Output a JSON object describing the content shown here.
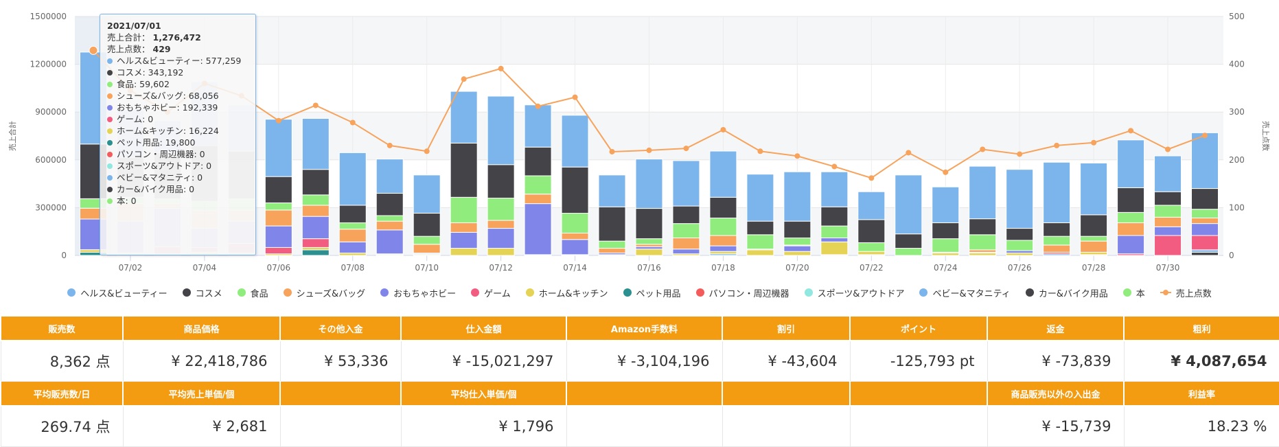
{
  "chart_data": {
    "type": "bar",
    "stacked": true,
    "categories": [
      "07/01",
      "07/02",
      "07/03",
      "07/04",
      "07/05",
      "07/06",
      "07/07",
      "07/08",
      "07/09",
      "07/10",
      "07/11",
      "07/12",
      "07/13",
      "07/14",
      "07/15",
      "07/16",
      "07/17",
      "07/18",
      "07/19",
      "07/20",
      "07/21",
      "07/22",
      "07/23",
      "07/24",
      "07/25",
      "07/26",
      "07/27",
      "07/28",
      "07/29",
      "07/30",
      "07/31"
    ],
    "x_tick_labels": [
      "07/02",
      "07/04",
      "07/06",
      "07/08",
      "07/10",
      "07/12",
      "07/14",
      "07/16",
      "07/18",
      "07/20",
      "07/22",
      "07/24",
      "07/26",
      "07/28",
      "07/30"
    ],
    "ylabel": "売上合計",
    "y2label": "売上点数",
    "ylim": [
      0,
      1500000
    ],
    "y2lim": [
      0,
      500
    ],
    "yticks": [
      "0",
      "300000",
      "600000",
      "900000",
      "1200000",
      "1500000"
    ],
    "y2ticks": [
      "0",
      "100",
      "200",
      "300",
      "400",
      "500"
    ],
    "legend_position": "bottom",
    "series": [
      {
        "name": "ヘルス&ビューティー",
        "color": "#7cb5ec",
        "values": [
          577259,
          300000,
          200000,
          400000,
          290000,
          360000,
          320000,
          330000,
          215000,
          240000,
          325000,
          430000,
          265000,
          325000,
          200000,
          310000,
          285000,
          290000,
          295000,
          310000,
          220000,
          175000,
          370000,
          225000,
          330000,
          370000,
          380000,
          325000,
          300000,
          225000,
          350000
        ]
      },
      {
        "name": "コスメ",
        "color": "#434348",
        "values": [
          343192,
          250000,
          290000,
          350000,
          300000,
          165000,
          160000,
          110000,
          140000,
          145000,
          340000,
          210000,
          180000,
          290000,
          215000,
          190000,
          110000,
          130000,
          85000,
          105000,
          120000,
          145000,
          90000,
          100000,
          100000,
          75000,
          85000,
          135000,
          155000,
          85000,
          130000
        ]
      },
      {
        "name": "食品",
        "color": "#90ed7d",
        "values": [
          59602,
          40000,
          30000,
          60000,
          70000,
          45000,
          65000,
          40000,
          35000,
          50000,
          160000,
          140000,
          115000,
          125000,
          45000,
          35000,
          90000,
          110000,
          90000,
          45000,
          75000,
          55000,
          45000,
          85000,
          95000,
          65000,
          55000,
          30000,
          65000,
          75000,
          55000
        ]
      },
      {
        "name": "シューズ&バッグ",
        "color": "#f7a35c",
        "values": [
          68056,
          110000,
          30000,
          110000,
          70000,
          100000,
          70000,
          80000,
          55000,
          55000,
          60000,
          50000,
          60000,
          40000,
          30000,
          15000,
          70000,
          65000,
          0,
          5000,
          0,
          0,
          0,
          0,
          15000,
          0,
          45000,
          70000,
          80000,
          60000,
          35000
        ]
      },
      {
        "name": "おもちゃホビー",
        "color": "#8085e9",
        "values": [
          192339,
          200000,
          240000,
          120000,
          140000,
          135000,
          140000,
          70000,
          150000,
          5000,
          100000,
          125000,
          320000,
          95000,
          10000,
          15000,
          30000,
          35000,
          5000,
          35000,
          25000,
          0,
          0,
          5000,
          5000,
          15000,
          0,
          0,
          115000,
          55000,
          75000
        ]
      },
      {
        "name": "ゲーム",
        "color": "#f15c80",
        "values": [
          0,
          0,
          45000,
          30000,
          60000,
          40000,
          55000,
          0,
          0,
          0,
          0,
          0,
          0,
          0,
          5000,
          0,
          0,
          0,
          0,
          0,
          0,
          0,
          0,
          0,
          0,
          0,
          0,
          0,
          10000,
          125000,
          90000
        ]
      },
      {
        "name": "ホーム&キッチン",
        "color": "#e4d354",
        "values": [
          16224,
          10000,
          10000,
          20000,
          15000,
          10000,
          15000,
          15000,
          5000,
          5000,
          45000,
          45000,
          0,
          0,
          0,
          40000,
          10000,
          15000,
          35000,
          25000,
          80000,
          20000,
          0,
          15000,
          15000,
          15000,
          0,
          15000,
          0,
          0,
          0
        ]
      },
      {
        "name": "ペット用品",
        "color": "#2b908f",
        "values": [
          19800,
          5000,
          0,
          0,
          0,
          0,
          35000,
          0,
          5000,
          5000,
          0,
          0,
          5000,
          0,
          0,
          0,
          0,
          0,
          0,
          0,
          0,
          5000,
          0,
          0,
          0,
          0,
          0,
          0,
          0,
          0,
          0
        ]
      },
      {
        "name": "パソコン・周辺機器",
        "color": "#f45b5b",
        "values": [
          0,
          0,
          0,
          0,
          0,
          0,
          0,
          0,
          0,
          0,
          0,
          0,
          0,
          0,
          0,
          0,
          0,
          0,
          0,
          0,
          5000,
          0,
          0,
          0,
          0,
          0,
          10000,
          5000,
          0,
          0,
          0
        ]
      },
      {
        "name": "スポーツ&アウトドア",
        "color": "#91e8e1",
        "values": [
          0,
          0,
          0,
          0,
          0,
          0,
          0,
          0,
          0,
          0,
          0,
          0,
          0,
          5000,
          0,
          0,
          0,
          0,
          0,
          0,
          0,
          0,
          0,
          0,
          0,
          0,
          0,
          0,
          0,
          0,
          0
        ]
      },
      {
        "name": "ベビー&マタニティ",
        "color": "#7cb5ec",
        "values": [
          0,
          0,
          0,
          0,
          0,
          0,
          0,
          0,
          0,
          0,
          0,
          0,
          0,
          0,
          0,
          0,
          0,
          10000,
          0,
          0,
          0,
          0,
          0,
          0,
          0,
          0,
          10000,
          0,
          0,
          0,
          15000
        ]
      },
      {
        "name": "カー&バイク用品",
        "color": "#434348",
        "values": [
          0,
          0,
          0,
          0,
          0,
          0,
          0,
          0,
          0,
          0,
          0,
          0,
          0,
          0,
          0,
          0,
          0,
          0,
          0,
          0,
          0,
          0,
          0,
          0,
          0,
          0,
          0,
          0,
          0,
          0,
          20000
        ]
      },
      {
        "name": "本",
        "color": "#90ed7d",
        "values": [
          0,
          0,
          0,
          0,
          0,
          0,
          0,
          0,
          0,
          0,
          0,
          0,
          0,
          0,
          0,
          0,
          0,
          0,
          0,
          0,
          0,
          0,
          0,
          0,
          0,
          0,
          0,
          0,
          0,
          0,
          0
        ]
      }
    ],
    "line_series": {
      "name": "売上点数",
      "color": "#f7a35c",
      "values": [
        429,
        345,
        300,
        360,
        334,
        282,
        314,
        278,
        230,
        218,
        369,
        391,
        312,
        331,
        217,
        220,
        224,
        263,
        218,
        208,
        186,
        162,
        215,
        174,
        222,
        212,
        230,
        236,
        261,
        222,
        251
      ]
    }
  },
  "tooltip": {
    "date": "2021/07/01",
    "total_label": "売上合計：",
    "total_value": "1,276,472",
    "count_label": "売上点数：",
    "count_value": "429",
    "rows": [
      {
        "label": "ヘルス&ビューティー: 577,259",
        "color": "#7cb5ec"
      },
      {
        "label": "コスメ: 343,192",
        "color": "#434348"
      },
      {
        "label": "食品: 59,602",
        "color": "#90ed7d"
      },
      {
        "label": "シューズ&バッグ: 68,056",
        "color": "#f7a35c"
      },
      {
        "label": "おもちゃホビー: 192,339",
        "color": "#8085e9"
      },
      {
        "label": "ゲーム: 0",
        "color": "#f15c80"
      },
      {
        "label": "ホーム&キッチン: 16,224",
        "color": "#e4d354"
      },
      {
        "label": "ペット用品: 19,800",
        "color": "#2b908f"
      },
      {
        "label": "パソコン・周辺機器: 0",
        "color": "#f45b5b"
      },
      {
        "label": "スポーツ&アウトドア: 0",
        "color": "#91e8e1"
      },
      {
        "label": "ベビー&マタニティ: 0",
        "color": "#7cb5ec"
      },
      {
        "label": "カー&バイク用品: 0",
        "color": "#434348"
      },
      {
        "label": "本: 0",
        "color": "#90ed7d"
      }
    ]
  },
  "summary": {
    "header1": [
      "販売数",
      "商品価格",
      "その他入金",
      "仕入金額",
      "Amazon手数料",
      "割引",
      "ポイント",
      "返金",
      "粗利"
    ],
    "values1": [
      "8,362 点",
      "¥ 22,418,786",
      "¥ 53,336",
      "¥ -15,021,297",
      "¥ -3,104,196",
      "¥ -43,604",
      "-125,793 pt",
      "¥ -73,839",
      "¥ 4,087,654"
    ],
    "header2": [
      "平均販売数/日",
      "平均売上単価/個",
      "",
      "平均仕入単価/個",
      "",
      "",
      "",
      "商品販売以外の入出金",
      "利益率"
    ],
    "values2": [
      "269.74 点",
      "¥ 2,681",
      "",
      "¥ 1,796",
      "",
      "",
      "",
      "¥ -15,739",
      "18.23 %"
    ]
  }
}
